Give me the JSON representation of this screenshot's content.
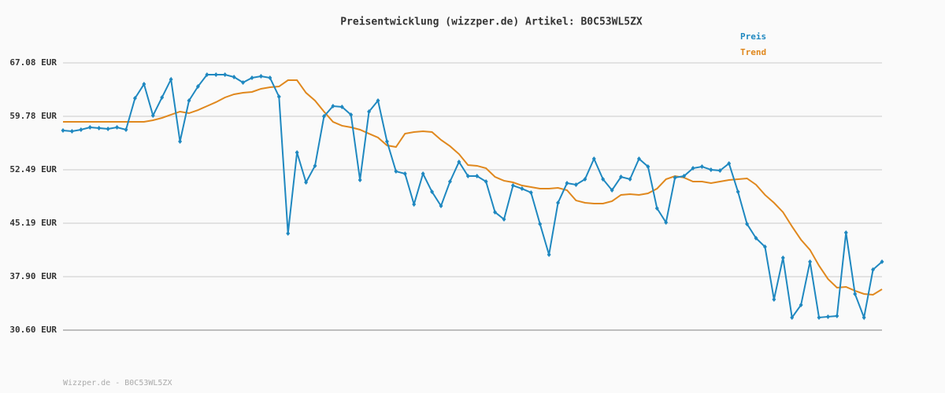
{
  "chart_data": {
    "type": "line",
    "title": "Preisentwicklung (wizzper.de) Artikel: B0C53WL5ZX",
    "footer": "Wizzper.de - B0C53WL5ZX",
    "series": [
      {
        "name": "Preis",
        "color": "#1f88c0",
        "markers": true,
        "values": [
          57.85,
          57.75,
          57.96,
          58.28,
          58.18,
          58.07,
          58.28,
          57.96,
          62.25,
          64.18,
          59.89,
          62.36,
          64.83,
          56.35,
          61.93,
          63.86,
          65.47,
          65.47,
          65.47,
          65.15,
          64.4,
          65.04,
          65.26,
          65.04,
          62.47,
          43.8,
          54.85,
          50.77,
          53.03,
          59.78,
          61.18,
          61.07,
          60.0,
          51.09,
          60.43,
          61.93,
          56.35,
          52.27,
          51.95,
          47.77,
          51.95,
          49.48,
          47.55,
          50.88,
          53.56,
          51.63,
          51.63,
          50.88,
          46.7,
          45.73,
          50.34,
          49.91,
          49.38,
          45.09,
          40.9,
          47.98,
          50.66,
          50.45,
          51.2,
          53.99,
          51.2,
          49.7,
          51.52,
          51.2,
          53.99,
          52.92,
          47.23,
          45.3,
          51.42,
          51.63,
          52.7,
          52.92,
          52.49,
          52.38,
          53.35,
          49.48,
          45.09,
          43.15,
          41.97,
          34.79,
          40.47,
          32.32,
          34.04,
          39.94,
          32.32,
          32.43,
          32.53,
          43.91,
          35.54,
          32.32,
          38.86,
          39.94
        ]
      },
      {
        "name": "Trend",
        "color": "#e0881e",
        "values": [
          59.03,
          59.03,
          59.03,
          59.03,
          59.03,
          59.03,
          59.03,
          59.03,
          59.03,
          59.03,
          59.25,
          59.57,
          60.0,
          60.43,
          60.21,
          60.64,
          61.18,
          61.72,
          62.36,
          62.79,
          63.0,
          63.11,
          63.54,
          63.75,
          63.86,
          64.72,
          64.72,
          63.0,
          61.93,
          60.43,
          59.03,
          58.5,
          58.28,
          57.96,
          57.42,
          56.89,
          55.81,
          55.6,
          57.42,
          57.64,
          57.75,
          57.64,
          56.57,
          55.71,
          54.63,
          53.13,
          53.03,
          52.7,
          51.52,
          50.99,
          50.77,
          50.34,
          50.13,
          49.91,
          49.91,
          50.02,
          49.7,
          48.3,
          47.98,
          47.88,
          47.88,
          48.2,
          49.06,
          49.16,
          49.06,
          49.27,
          49.91,
          51.2,
          51.63,
          51.42,
          50.88,
          50.88,
          50.66,
          50.88,
          51.09,
          51.2,
          51.31,
          50.45,
          49.06,
          47.98,
          46.7,
          44.76,
          42.94,
          41.55,
          39.4,
          37.58,
          36.4,
          36.5,
          35.97,
          35.54,
          35.43,
          36.18
        ]
      }
    ],
    "ylim": [
      30.6,
      67.08
    ],
    "yticks": [
      {
        "value": 30.6,
        "label": "30.60 EUR"
      },
      {
        "value": 37.9,
        "label": "37.90 EUR"
      },
      {
        "value": 45.19,
        "label": "45.19 EUR"
      },
      {
        "value": 52.49,
        "label": "52.49 EUR"
      },
      {
        "value": 59.78,
        "label": "59.78 EUR"
      },
      {
        "value": 67.08,
        "label": "67.08 EUR"
      }
    ],
    "grid": true,
    "legend": "top-right"
  }
}
